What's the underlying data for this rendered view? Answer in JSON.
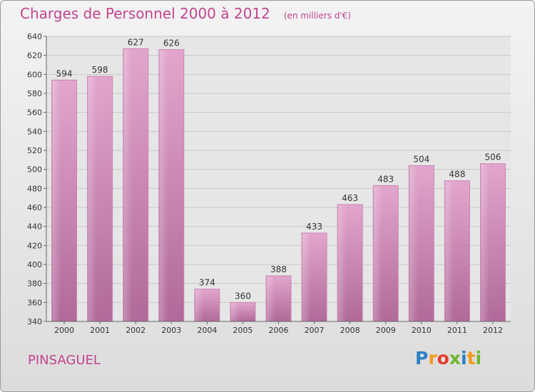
{
  "title": "Charges de Personnel 2000 à 2012",
  "subtitle": "(en milliers d'€)",
  "location": "PINSAGUEL",
  "logo": {
    "letters": [
      "P",
      "r",
      "o",
      "x",
      "i",
      "t",
      "i"
    ],
    "colors": [
      "#2c7fc4",
      "#f39a1e",
      "#e53c2e",
      "#6fb631",
      "#2c7fc4",
      "#f39a1e",
      "#6fb631"
    ]
  },
  "colors": {
    "bar": "#d98ec0",
    "bar_dark": "#b46e9e",
    "title": "#c2458e",
    "grid": "#c8c8c8"
  },
  "chart_data": {
    "type": "bar",
    "categories": [
      "2000",
      "2001",
      "2002",
      "2003",
      "2004",
      "2005",
      "2006",
      "2007",
      "2008",
      "2009",
      "2010",
      "2011",
      "2012"
    ],
    "values": [
      594,
      598,
      627,
      626,
      374,
      360,
      388,
      433,
      463,
      483,
      504,
      488,
      506
    ],
    "ylim": [
      340,
      640
    ],
    "yticks": [
      340,
      360,
      380,
      400,
      420,
      440,
      460,
      480,
      500,
      520,
      540,
      560,
      580,
      600,
      620,
      640
    ],
    "grid": true
  }
}
